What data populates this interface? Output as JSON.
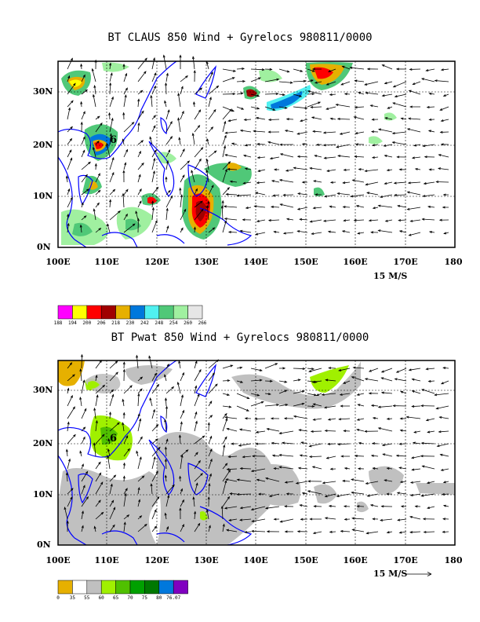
{
  "panels": [
    {
      "title": "BT CLAUS 850 Wind + Gyrelocs 980811/0000",
      "lat_labels": [
        "30N",
        "20N",
        "10N",
        "0N"
      ],
      "lon_labels": [
        "100E",
        "110E",
        "120E",
        "130E",
        "140E",
        "150E",
        "160E",
        "170E",
        "180"
      ],
      "scale_label": "15 M/S",
      "legend": {
        "colors": [
          "#ff00ff",
          "#ffff00",
          "#ff0000",
          "#a00000",
          "#e6b000",
          "#0078dc",
          "#50f0f0",
          "#50c878",
          "#a0f0a0",
          "#e6e6e6"
        ],
        "labels": [
          "188",
          "194",
          "200",
          "206",
          "218",
          "230",
          "242",
          "248",
          "254",
          "260",
          "266"
        ]
      }
    },
    {
      "title": "BT Pwat 850 Wind + Gyrelocs 980811/0000",
      "lat_labels": [
        "30N",
        "20N",
        "10N",
        "0N"
      ],
      "lon_labels": [
        "100E",
        "110E",
        "120E",
        "130E",
        "140E",
        "150E",
        "160E",
        "170E",
        "180"
      ],
      "scale_label": "15 M/S",
      "legend": {
        "colors": [
          "#e6b000",
          "#ffffff",
          "#c0c0c0",
          "#a0f000",
          "#50c000",
          "#00a000",
          "#007800",
          "#0078dc",
          "#8000c0"
        ],
        "labels": [
          "0",
          "35",
          "55",
          "60",
          "65",
          "70",
          "75",
          "80",
          "76.07"
        ]
      }
    }
  ]
}
